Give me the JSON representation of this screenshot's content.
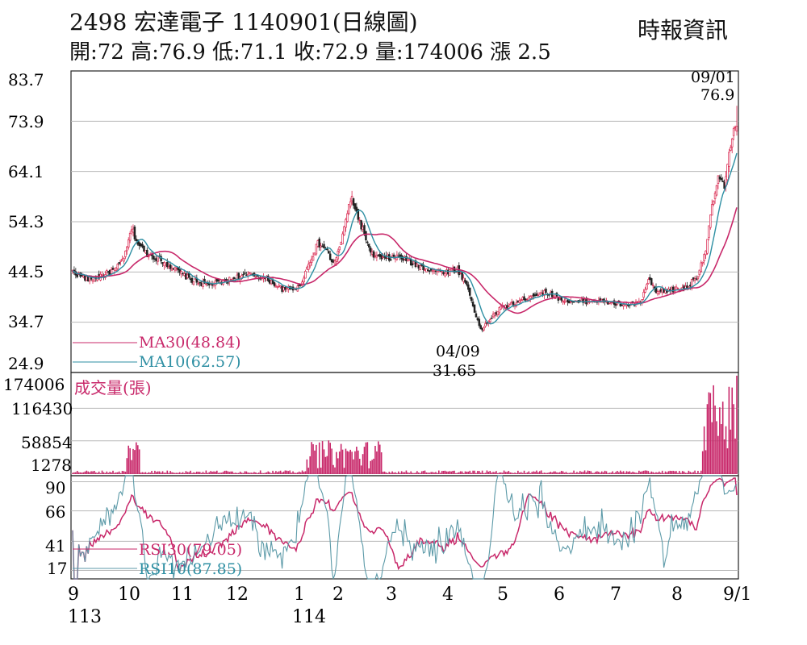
{
  "header": {
    "title": "2498  宏達電子 1140901(日線圖)",
    "summary": "開:72 高:76.9 低:71.1 收:72.9 量:174006 漲 2.5",
    "source": "時報資訊"
  },
  "chart_data": {
    "type": "candlestick",
    "price_panel": {
      "ylim": [
        24.9,
        83.7
      ],
      "ticks": [
        "83.7",
        "73.9",
        "64.1",
        "54.3",
        "44.5",
        "34.7",
        "24.9"
      ],
      "high_annotation": {
        "date": "09/01",
        "value": "76.9"
      },
      "low_annotation": {
        "date": "04/09",
        "value": "31.65"
      },
      "legend": [
        "MA30(48.84)",
        "MA10(62.57)"
      ],
      "ma_values": {
        "MA30": 48.84,
        "MA10": 62.57
      },
      "last_bar": {
        "open": 72,
        "high": 76.9,
        "low": 71.1,
        "close": 72.9,
        "change": 2.5
      }
    },
    "volume_panel": {
      "label": "成交量(張)",
      "ticks": [
        "174006",
        "116430",
        "58854",
        "1278"
      ],
      "ylim": [
        0,
        174006
      ],
      "last_volume": 174006
    },
    "rsi_panel": {
      "ticks": [
        "90",
        "66",
        "41",
        "17"
      ],
      "ylim": [
        10,
        95
      ],
      "legend": [
        "RSI30(79.05)",
        "RSI10(87.85)"
      ],
      "rsi_values": {
        "RSI30": 79.05,
        "RSI10": 87.85
      }
    },
    "x_axis": {
      "months": [
        "9",
        "10",
        "11",
        "12",
        "1",
        "2",
        "3",
        "4",
        "5",
        "6",
        "7",
        "8",
        "9/1"
      ],
      "years": [
        "113",
        "114"
      ]
    },
    "colors": {
      "up": "#d9264e",
      "down": "#222222",
      "ma30": "#c8286a",
      "ma10": "#2e8fa3",
      "volume": "#c8286a",
      "rsi30": "#c8286a",
      "rsi10": "#5c9aa8",
      "grid": "#b8b8b8"
    },
    "approx_close_path": [
      [
        0,
        44.5
      ],
      [
        10,
        43
      ],
      [
        20,
        44
      ],
      [
        28,
        45
      ],
      [
        34,
        48
      ],
      [
        38,
        53
      ],
      [
        42,
        50
      ],
      [
        48,
        48
      ],
      [
        56,
        47
      ],
      [
        66,
        45
      ],
      [
        76,
        43
      ],
      [
        86,
        42
      ],
      [
        96,
        42.5
      ],
      [
        106,
        43.5
      ],
      [
        116,
        44
      ],
      [
        126,
        43
      ],
      [
        136,
        41
      ],
      [
        146,
        41.5
      ],
      [
        152,
        46
      ],
      [
        158,
        50
      ],
      [
        163,
        49
      ],
      [
        168,
        46
      ],
      [
        173,
        50
      ],
      [
        176,
        55
      ],
      [
        180,
        59
      ],
      [
        184,
        55
      ],
      [
        188,
        52
      ],
      [
        192,
        48
      ],
      [
        200,
        47
      ],
      [
        210,
        47.5
      ],
      [
        220,
        46
      ],
      [
        230,
        45
      ],
      [
        240,
        44.5
      ],
      [
        248,
        45
      ],
      [
        254,
        42
      ],
      [
        260,
        36
      ],
      [
        263,
        33
      ],
      [
        268,
        35
      ],
      [
        276,
        37.5
      ],
      [
        286,
        38.5
      ],
      [
        296,
        40
      ],
      [
        306,
        40.5
      ],
      [
        316,
        39
      ],
      [
        326,
        38.5
      ],
      [
        336,
        39
      ],
      [
        346,
        38.5
      ],
      [
        356,
        38
      ],
      [
        366,
        38.5
      ],
      [
        371,
        43
      ],
      [
        376,
        40.5
      ],
      [
        386,
        41
      ],
      [
        396,
        41.5
      ],
      [
        403,
        44
      ],
      [
        408,
        49
      ],
      [
        412,
        57
      ],
      [
        416,
        63
      ],
      [
        420,
        61
      ],
      [
        423,
        67
      ],
      [
        426,
        73
      ],
      [
        428,
        72.9
      ]
    ]
  }
}
